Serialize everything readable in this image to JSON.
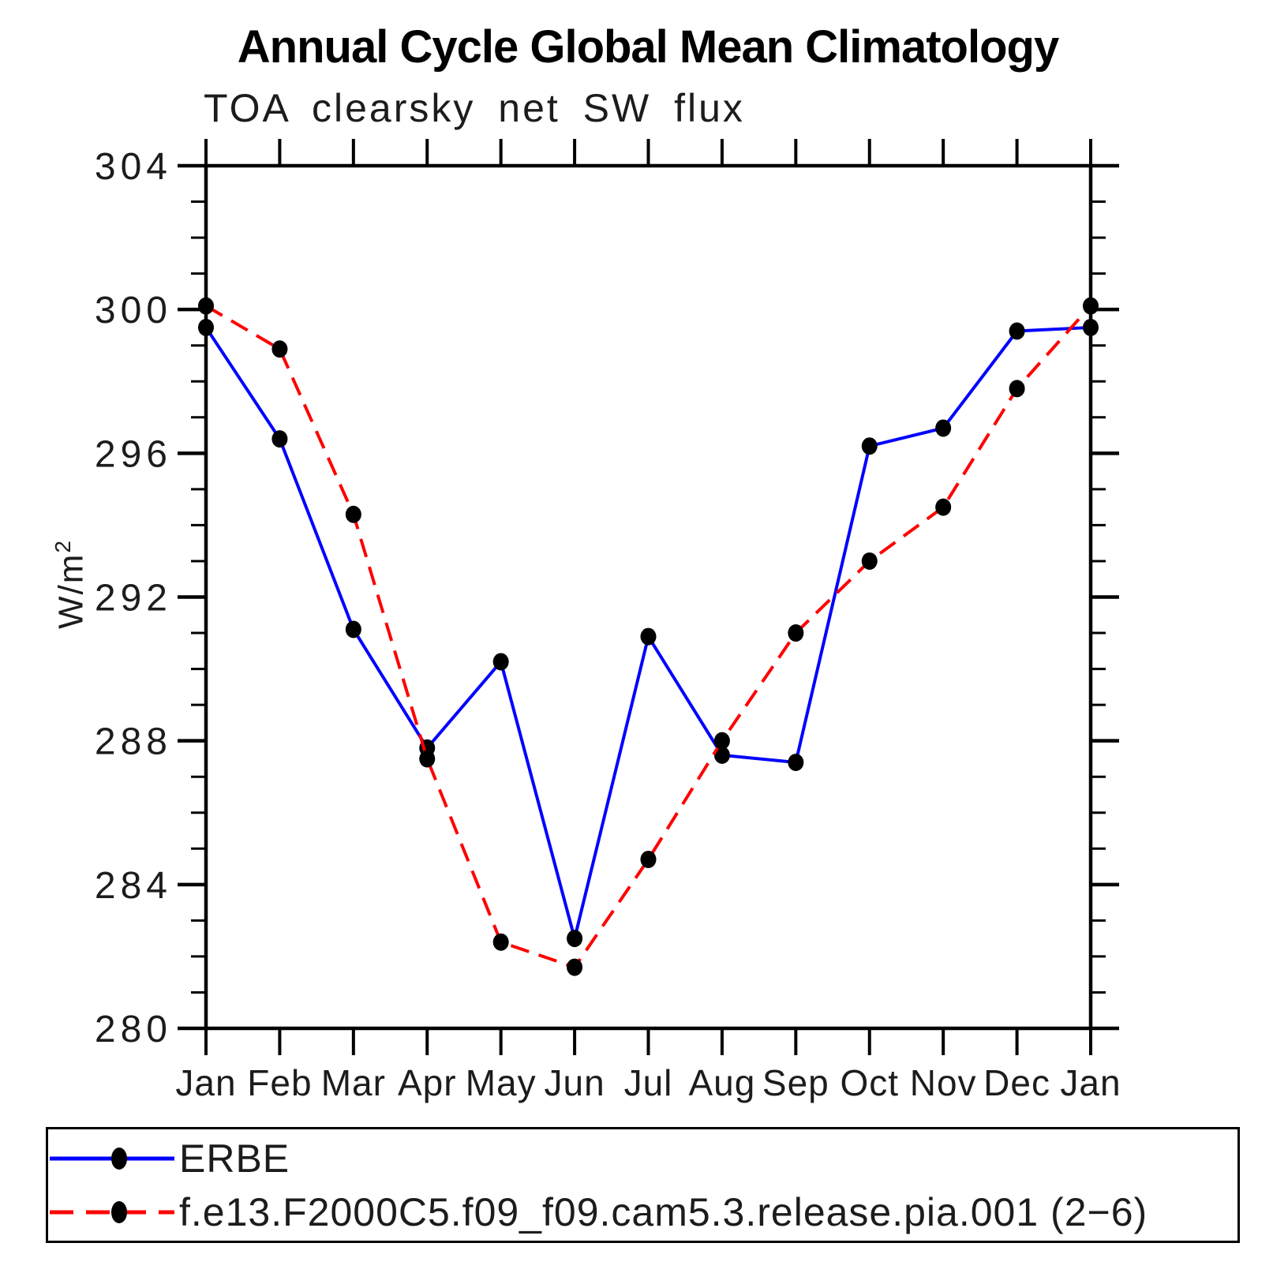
{
  "title": "Annual Cycle Global Mean Climatology",
  "subtitle": "TOA clearsky net SW flux",
  "ylabel_base": "W/m",
  "ylabel_exponent": "2",
  "chart_data": {
    "type": "line",
    "categories": [
      "Jan",
      "Feb",
      "Mar",
      "Apr",
      "May",
      "Jun",
      "Jul",
      "Aug",
      "Sep",
      "Oct",
      "Nov",
      "Dec",
      "Jan"
    ],
    "series": [
      {
        "name": "ERBE",
        "color": "#0000ff",
        "line_style": "solid",
        "marker": "filled-circle",
        "marker_color": "#000000",
        "values": [
          299.5,
          296.4,
          291.1,
          287.8,
          290.2,
          282.5,
          290.9,
          287.6,
          287.4,
          296.2,
          296.7,
          299.4,
          299.5
        ]
      },
      {
        "name": "f.e13.F2000C5.f09_f09.cam5.3.release.pia.001 (2−6)",
        "color": "#ff0000",
        "line_style": "dashed",
        "marker": "filled-circle",
        "marker_color": "#000000",
        "values": [
          300.1,
          298.9,
          294.3,
          287.5,
          282.4,
          281.7,
          284.7,
          288.0,
          291.0,
          293.0,
          294.5,
          297.8,
          300.1
        ]
      }
    ],
    "ylim": [
      280,
      304
    ],
    "ytick_major_step": 4,
    "ytick_minor_step": 1,
    "ytick_labels": [
      "280",
      "284",
      "288",
      "292",
      "296",
      "300",
      "304"
    ],
    "xlabel": "",
    "ylabel": "W/m2",
    "grid": false,
    "legend_position": "bottom",
    "axis_color": "#000000"
  }
}
